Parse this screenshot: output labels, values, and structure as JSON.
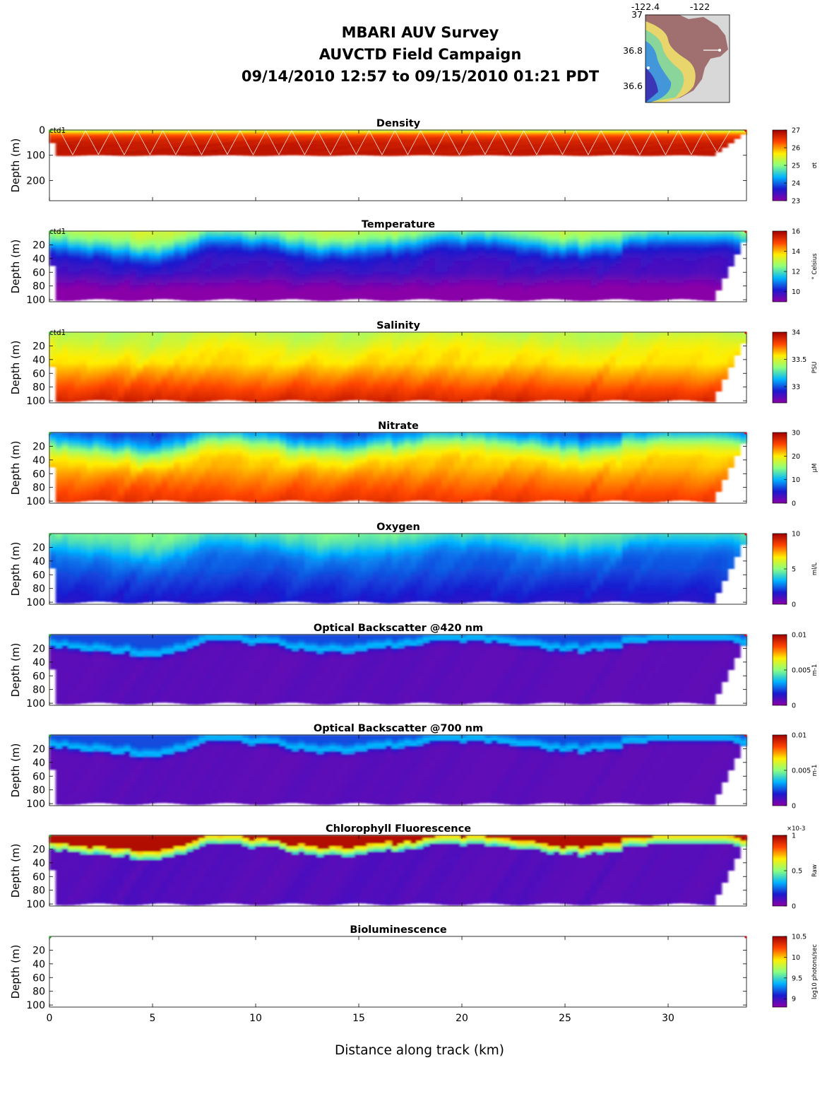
{
  "header": {
    "line1": "MBARI AUV Survey",
    "line2": "AUVCTD Field Campaign",
    "line3": "09/14/2010 12:57  to 09/15/2010 01:21 PDT"
  },
  "map": {
    "lon_ticks": [
      "-122.4",
      "-122"
    ],
    "lat_ticks": [
      "37",
      "36.8",
      "36.6"
    ]
  },
  "colors": {
    "colormap": [
      "#8a00a8",
      "#1a1acf",
      "#00b4ff",
      "#8cff7f",
      "#ffee00",
      "#ff4500",
      "#a00000"
    ]
  },
  "chart_data": [
    {
      "type": "heatmap",
      "title": "Density",
      "ylabel": "Depth (m)",
      "yticks": [
        "0",
        "100",
        "200"
      ],
      "ylim": [
        280,
        -5
      ],
      "annotation": "ctd1",
      "clim": [
        23,
        27
      ],
      "cbar_ticks": [
        "27",
        "26",
        "25",
        "24",
        "23"
      ],
      "cbar_label": "σt"
    },
    {
      "type": "heatmap",
      "title": "Temperature",
      "ylabel": "Depth (m)",
      "yticks": [
        "20",
        "40",
        "60",
        "80",
        "100"
      ],
      "ylim": [
        103,
        0
      ],
      "annotation": "ctd1",
      "clim": [
        9,
        16
      ],
      "cbar_ticks": [
        "16",
        "14",
        "12",
        "10"
      ],
      "cbar_label": "° Celsius"
    },
    {
      "type": "heatmap",
      "title": "Salinity",
      "ylabel": "Depth (m)",
      "yticks": [
        "20",
        "40",
        "60",
        "80",
        "100"
      ],
      "ylim": [
        103,
        0
      ],
      "annotation": "ctd1",
      "clim": [
        32.7,
        34
      ],
      "cbar_ticks": [
        "34",
        "33.5",
        "33"
      ],
      "cbar_label": "PSU"
    },
    {
      "type": "heatmap",
      "title": "Nitrate",
      "ylabel": "Depth (m)",
      "yticks": [
        "20",
        "40",
        "60",
        "80",
        "100"
      ],
      "ylim": [
        103,
        0
      ],
      "clim": [
        0,
        30
      ],
      "cbar_ticks": [
        "30",
        "20",
        "10",
        "0"
      ],
      "cbar_label": "μM"
    },
    {
      "type": "heatmap",
      "title": "Oxygen",
      "ylabel": "Depth (m)",
      "yticks": [
        "20",
        "40",
        "60",
        "80",
        "100"
      ],
      "ylim": [
        103,
        0
      ],
      "clim": [
        0,
        10
      ],
      "cbar_ticks": [
        "10",
        "5",
        "0"
      ],
      "cbar_label": "ml/L"
    },
    {
      "type": "heatmap",
      "title": "Optical Backscatter @420 nm",
      "ylabel": "Depth (m)",
      "yticks": [
        "20",
        "40",
        "60",
        "80",
        "100"
      ],
      "ylim": [
        103,
        0
      ],
      "clim": [
        0,
        0.01
      ],
      "cbar_ticks": [
        "0.01",
        "0.005",
        "0"
      ],
      "cbar_label": "m-1"
    },
    {
      "type": "heatmap",
      "title": "Optical Backscatter @700 nm",
      "ylabel": "Depth (m)",
      "yticks": [
        "20",
        "40",
        "60",
        "80",
        "100"
      ],
      "ylim": [
        103,
        0
      ],
      "clim": [
        0,
        0.01
      ],
      "cbar_ticks": [
        "0.01",
        "0.005",
        "0"
      ],
      "cbar_label": "m-1"
    },
    {
      "type": "heatmap",
      "title": "Chlorophyll Fluorescence",
      "ylabel": "Depth (m)",
      "yticks": [
        "20",
        "40",
        "60",
        "80",
        "100"
      ],
      "ylim": [
        103,
        0
      ],
      "clim": [
        0,
        0.001
      ],
      "cbar_ticks": [
        "1",
        "0.5",
        "0"
      ],
      "cbar_exp": "×10-3",
      "cbar_label": "Raw"
    },
    {
      "type": "heatmap",
      "title": "Bioluminescence",
      "ylabel": "Depth (m)",
      "yticks": [
        "20",
        "40",
        "60",
        "80",
        "100"
      ],
      "ylim": [
        103,
        0
      ],
      "clim": [
        8.8,
        10.5
      ],
      "cbar_ticks": [
        "10.5",
        "10",
        "9.5",
        "9"
      ],
      "cbar_label": "log10 photons/sec",
      "empty": true
    }
  ],
  "x_axis": {
    "xlabel": "Distance along track (km)",
    "xticks": [
      "0",
      "5",
      "10",
      "15",
      "20",
      "25",
      "30"
    ],
    "xlim": [
      0,
      33.8
    ]
  }
}
